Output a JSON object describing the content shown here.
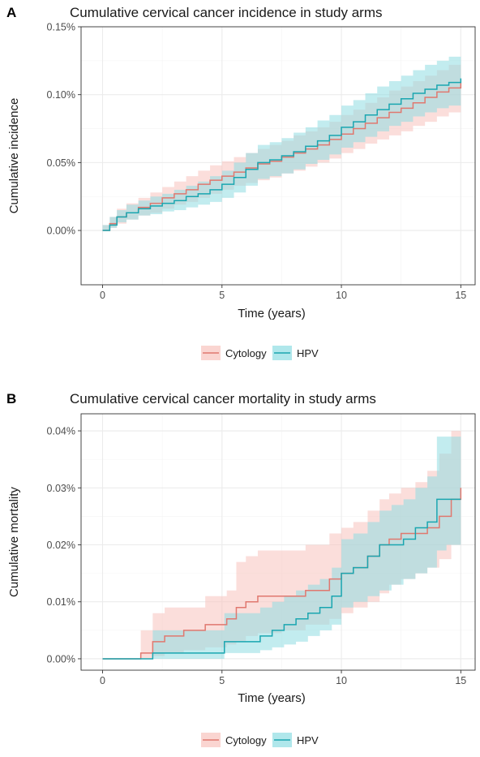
{
  "chart_data": [
    {
      "panel_label": "A",
      "type": "line",
      "step": true,
      "title": "Cumulative cervical cancer incidence in study arms",
      "xlabel": "Time (years)",
      "ylabel": "Cumulative incidence",
      "xlim": [
        -0.9,
        15.6
      ],
      "ylim": [
        -0.0004,
        0.0015
      ],
      "x_ticks": [
        0,
        5,
        10,
        15
      ],
      "y_ticks": [
        0,
        0.0005,
        0.001,
        0.0015
      ],
      "x_tick_labels": [
        "0",
        "5",
        "10",
        "15"
      ],
      "y_tick_labels": [
        "0.00%",
        "0.05%",
        "0.10%",
        "0.15%"
      ],
      "grid": true,
      "legend_position": "bottom",
      "series": [
        {
          "name": "Cytology",
          "color": "#e0786f",
          "band_color": "#f8c3bd",
          "x": [
            0,
            0.3,
            0.6,
            1,
            1.5,
            2,
            2.5,
            3,
            3.5,
            4,
            4.5,
            5,
            5.5,
            6,
            6.5,
            7,
            7.5,
            8,
            8.5,
            9,
            9.5,
            10,
            10.5,
            11,
            11.5,
            12,
            12.5,
            13,
            13.5,
            14,
            14.5,
            15
          ],
          "y": [
            0,
            5e-05,
            0.0001,
            0.00013,
            0.00017,
            0.0002,
            0.00024,
            0.00027,
            0.0003,
            0.00034,
            0.00037,
            0.0004,
            0.00043,
            0.00046,
            0.00049,
            0.00051,
            0.00054,
            0.00057,
            0.0006,
            0.00063,
            0.00067,
            0.00071,
            0.00075,
            0.00079,
            0.00083,
            0.00087,
            0.0009,
            0.00094,
            0.00098,
            0.00102,
            0.00105,
            0.00109
          ],
          "lower": [
            0,
            2e-05,
            5e-05,
            8e-05,
            0.00011,
            0.00013,
            0.00016,
            0.00019,
            0.00021,
            0.00024,
            0.00027,
            0.0003,
            0.00033,
            0.00035,
            0.00037,
            0.00039,
            0.00042,
            0.00044,
            0.00047,
            0.0005,
            0.00053,
            0.00057,
            0.0006,
            0.00064,
            0.00067,
            0.0007,
            0.00073,
            0.00077,
            0.0008,
            0.00084,
            0.00087,
            0.0009
          ],
          "upper": [
            4e-05,
            0.0001,
            0.00016,
            0.0002,
            0.00024,
            0.00028,
            0.00032,
            0.00036,
            0.0004,
            0.00044,
            0.00048,
            0.00051,
            0.00054,
            0.00057,
            0.0006,
            0.00063,
            0.00066,
            0.0007,
            0.00073,
            0.00076,
            0.0008,
            0.00085,
            0.00089,
            0.00094,
            0.00098,
            0.00103,
            0.00106,
            0.0011,
            0.00114,
            0.00118,
            0.00122,
            0.00126
          ]
        },
        {
          "name": "HPV",
          "color": "#1aa6b0",
          "band_color": "#8fdde2",
          "x": [
            0,
            0.3,
            0.6,
            1,
            1.5,
            2,
            2.5,
            3,
            3.5,
            4,
            4.5,
            5,
            5.5,
            6,
            6.5,
            7,
            7.5,
            8,
            8.5,
            9,
            9.5,
            10,
            10.5,
            11,
            11.5,
            12,
            12.5,
            13,
            13.5,
            14,
            14.5,
            15
          ],
          "y": [
            0,
            4e-05,
            0.0001,
            0.00013,
            0.00016,
            0.00018,
            0.0002,
            0.00022,
            0.00025,
            0.00027,
            0.0003,
            0.00034,
            0.00039,
            0.00045,
            0.0005,
            0.00052,
            0.00055,
            0.00058,
            0.00062,
            0.00066,
            0.0007,
            0.00076,
            0.0008,
            0.00085,
            0.00089,
            0.00093,
            0.00097,
            0.00101,
            0.00104,
            0.00107,
            0.00109,
            0.00112
          ],
          "lower": [
            0,
            2e-05,
            6e-05,
            8e-05,
            0.00011,
            0.00012,
            0.00014,
            0.00015,
            0.00017,
            0.00019,
            0.00021,
            0.00024,
            0.00028,
            0.00033,
            0.00038,
            0.0004,
            0.00042,
            0.00045,
            0.00049,
            0.00052,
            0.00056,
            0.00061,
            0.00065,
            0.00069,
            0.00073,
            0.00077,
            0.0008,
            0.00084,
            0.00087,
            0.0009,
            0.00092,
            0.00095
          ],
          "upper": [
            4e-05,
            0.0001,
            0.00015,
            0.00019,
            0.00022,
            0.00025,
            0.00027,
            0.0003,
            0.00033,
            0.00036,
            0.0004,
            0.00044,
            0.0005,
            0.00057,
            0.00063,
            0.00065,
            0.00068,
            0.00072,
            0.00076,
            0.00081,
            0.00085,
            0.00092,
            0.00096,
            0.00101,
            0.00106,
            0.0011,
            0.00114,
            0.00118,
            0.00122,
            0.00125,
            0.00128,
            0.00132
          ]
        }
      ]
    },
    {
      "panel_label": "B",
      "type": "line",
      "step": true,
      "title": "Cumulative cervical cancer mortality in study arms",
      "xlabel": "Time (years)",
      "ylabel": "Cumulative mortality",
      "xlim": [
        -0.9,
        15.6
      ],
      "ylim": [
        -2e-05,
        0.00043
      ],
      "x_ticks": [
        0,
        5,
        10,
        15
      ],
      "y_ticks": [
        0,
        0.0001,
        0.0002,
        0.0003,
        0.0004
      ],
      "x_tick_labels": [
        "0",
        "5",
        "10",
        "15"
      ],
      "y_tick_labels": [
        "0.00%",
        "0.01%",
        "0.02%",
        "0.03%",
        "0.04%"
      ],
      "grid": true,
      "legend_position": "bottom",
      "series": [
        {
          "name": "Cytology",
          "color": "#e0786f",
          "band_color": "#f8c3bd",
          "x": [
            0,
            1.6,
            2.1,
            2.6,
            3.4,
            4.3,
            5.2,
            5.6,
            6,
            6.5,
            7.5,
            8.5,
            9.5,
            10,
            10.5,
            11.1,
            11.6,
            12,
            12.5,
            13.1,
            13.6,
            14.1,
            14.6,
            15
          ],
          "y": [
            0,
            1e-05,
            3e-05,
            4e-05,
            5e-05,
            6e-05,
            7e-05,
            9e-05,
            0.0001,
            0.00011,
            0.00011,
            0.00012,
            0.00014,
            0.00015,
            0.00016,
            0.00018,
            0.0002,
            0.00021,
            0.00022,
            0.00022,
            0.00023,
            0.00025,
            0.00028,
            0.0003
          ],
          "lower": [
            0,
            0,
            5e-06,
            1e-05,
            1.5e-05,
            2e-05,
            2.5e-05,
            3e-05,
            4e-05,
            4.5e-05,
            5e-05,
            6e-05,
            7e-05,
            8e-05,
            9e-05,
            0.0001,
            0.000115,
            0.00013,
            0.00014,
            0.00015,
            0.00016,
            0.000175,
            0.0002,
            0.00022
          ],
          "upper": [
            0,
            5e-05,
            8e-05,
            9e-05,
            9e-05,
            0.00011,
            0.00012,
            0.00017,
            0.00018,
            0.00019,
            0.00019,
            0.0002,
            0.00022,
            0.00023,
            0.00024,
            0.00026,
            0.00028,
            0.00029,
            0.0003,
            0.00031,
            0.00033,
            0.00036,
            0.0004,
            0.00042
          ]
        },
        {
          "name": "HPV",
          "color": "#1aa6b0",
          "band_color": "#8fdde2",
          "x": [
            0,
            2.1,
            4.6,
            5.1,
            6.1,
            6.6,
            7.1,
            7.6,
            8.1,
            8.6,
            9.1,
            9.6,
            10,
            10.5,
            11.1,
            11.6,
            12.1,
            12.6,
            13.1,
            13.6,
            14,
            14.4,
            15
          ],
          "y": [
            0,
            1e-05,
            1e-05,
            3e-05,
            3e-05,
            4e-05,
            5e-05,
            6e-05,
            7e-05,
            8e-05,
            9e-05,
            0.00011,
            0.00015,
            0.00016,
            0.00018,
            0.0002,
            0.0002,
            0.00021,
            0.00023,
            0.00024,
            0.00028,
            0.00028,
            0.00028
          ],
          "lower": [
            0,
            0,
            0,
            1e-05,
            1e-05,
            1.5e-05,
            2e-05,
            2.5e-05,
            3e-05,
            4e-05,
            5e-05,
            6e-05,
            9e-05,
            0.0001,
            0.00011,
            0.00012,
            0.00013,
            0.00014,
            0.00015,
            0.00016,
            0.00019,
            0.0002,
            0.0002
          ],
          "upper": [
            0,
            5e-05,
            5e-05,
            8e-05,
            8e-05,
            9e-05,
            0.0001,
            0.00011,
            0.00012,
            0.00013,
            0.00014,
            0.00016,
            0.00021,
            0.00022,
            0.00024,
            0.00026,
            0.00027,
            0.00028,
            0.0003,
            0.00032,
            0.00039,
            0.00039,
            0.00039
          ]
        }
      ]
    }
  ]
}
